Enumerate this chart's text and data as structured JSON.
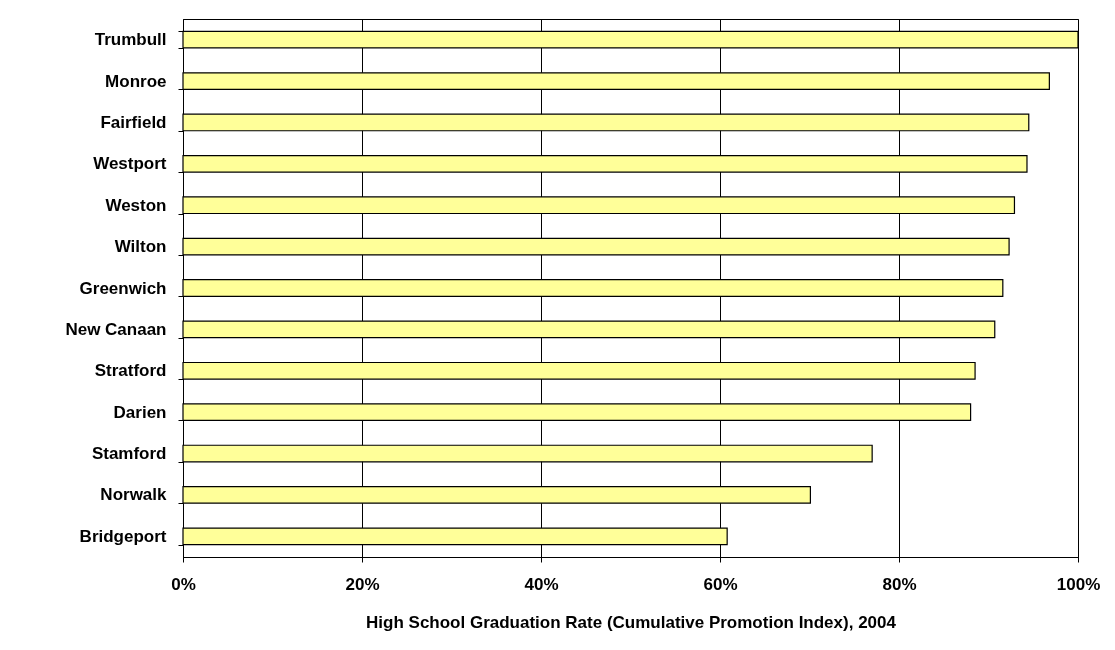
{
  "chart_data": {
    "type": "bar",
    "orientation": "horizontal",
    "xlabel": "High School Graduation Rate (Cumulative Promotion Index), 2004",
    "categories": [
      "Trumbull",
      "Monroe",
      "Fairfield",
      "Westport",
      "Weston",
      "Wilton",
      "Greenwich",
      "New Canaan",
      "Stratford",
      "Darien",
      "Stamford",
      "Norwalk",
      "Bridgeport"
    ],
    "values": [
      100,
      96.8,
      94.5,
      94.3,
      92.9,
      92.3,
      91.6,
      90.7,
      88.5,
      88.0,
      77.0,
      70.1,
      60.8
    ],
    "color": "#ffff99",
    "xlim": [
      0,
      100
    ],
    "xticks": [
      {
        "value": 0,
        "label": "0%"
      },
      {
        "value": 20,
        "label": "20%"
      },
      {
        "value": 40,
        "label": "40%"
      },
      {
        "value": 60,
        "label": "60%"
      },
      {
        "value": 80,
        "label": "80%"
      },
      {
        "value": 100,
        "label": "100%"
      }
    ],
    "grid": "x"
  }
}
